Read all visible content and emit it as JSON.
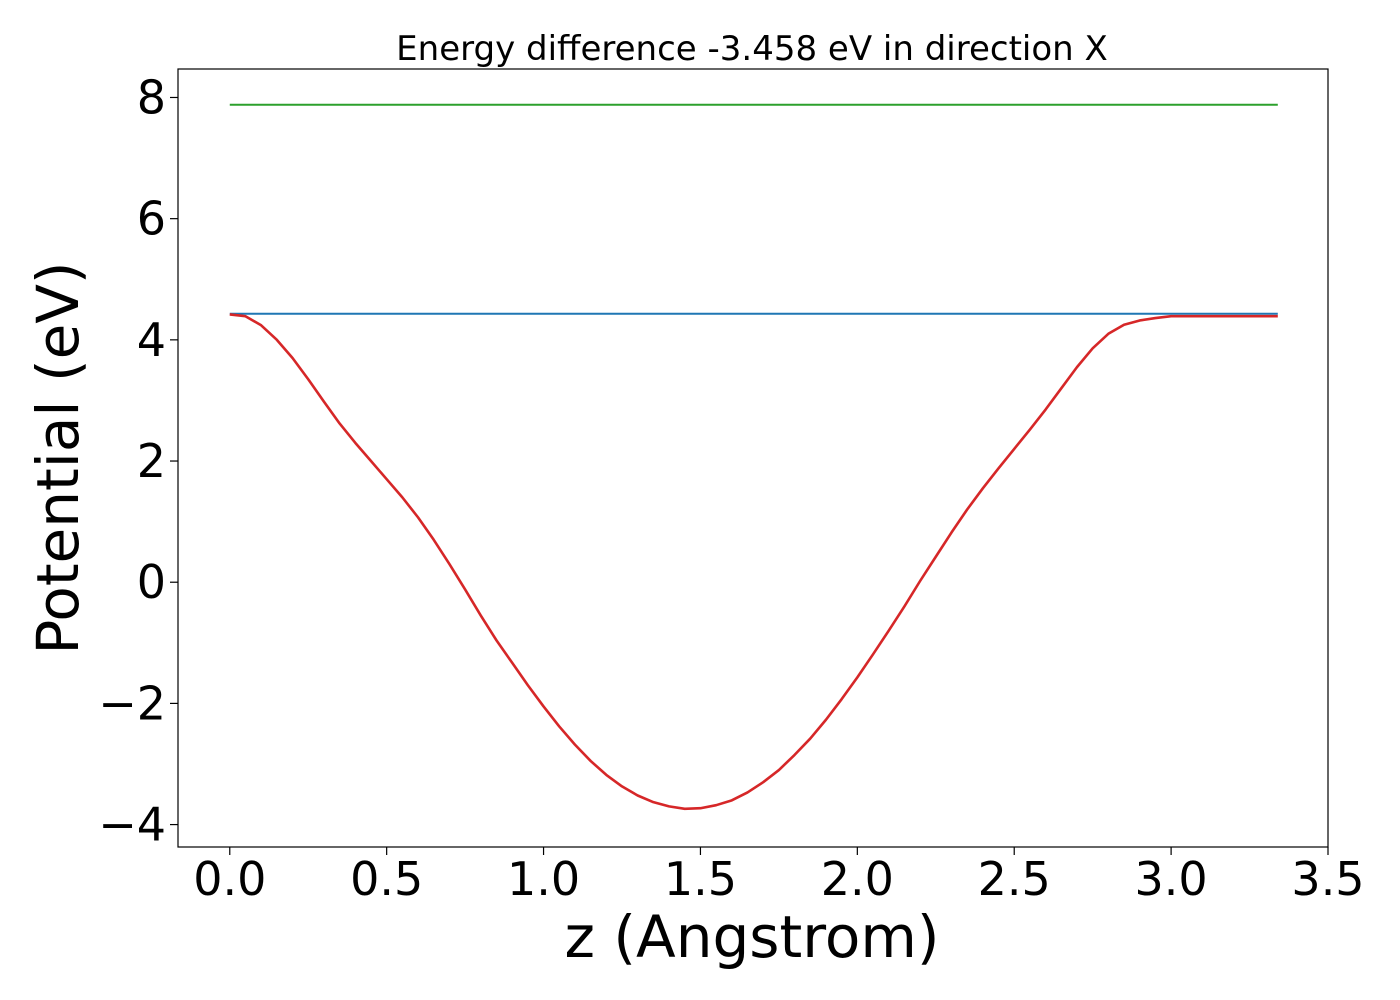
{
  "chart_data": {
    "type": "line",
    "title": "Energy difference -3.458 eV in direction X",
    "xlabel": "z (Angstrom)",
    "ylabel": "Potential (eV)",
    "xlim": [
      -0.165,
      3.5
    ],
    "ylim": [
      -4.37,
      8.47
    ],
    "xticks": [
      0.0,
      0.5,
      1.0,
      1.5,
      2.0,
      2.5,
      3.0,
      3.5
    ],
    "xtick_labels": [
      "0.0",
      "0.5",
      "1.0",
      "1.5",
      "2.0",
      "2.5",
      "3.0",
      "3.5"
    ],
    "yticks": [
      -4,
      -2,
      0,
      2,
      4,
      6,
      8
    ],
    "ytick_labels": [
      "−4",
      "−2",
      "0",
      "2",
      "4",
      "6",
      "8"
    ],
    "grid": false,
    "series": [
      {
        "color": "#2ca02c",
        "x": [
          0.0,
          3.34
        ],
        "y": [
          7.88,
          7.88
        ]
      },
      {
        "color": "#1f77b4",
        "x": [
          0.0,
          3.34
        ],
        "y": [
          4.43,
          4.43
        ]
      },
      {
        "color": "#d62728",
        "x": [
          0.0,
          0.05,
          0.1,
          0.15,
          0.2,
          0.25,
          0.3,
          0.35,
          0.4,
          0.45,
          0.5,
          0.55,
          0.6,
          0.65,
          0.7,
          0.75,
          0.8,
          0.85,
          0.9,
          0.95,
          1.0,
          1.05,
          1.1,
          1.15,
          1.2,
          1.25,
          1.3,
          1.35,
          1.4,
          1.45,
          1.5,
          1.55,
          1.6,
          1.65,
          1.7,
          1.75,
          1.8,
          1.85,
          1.9,
          1.95,
          2.0,
          2.05,
          2.1,
          2.15,
          2.2,
          2.25,
          2.3,
          2.35,
          2.4,
          2.45,
          2.5,
          2.55,
          2.6,
          2.65,
          2.7,
          2.75,
          2.8,
          2.85,
          2.9,
          2.95,
          3.0,
          3.05,
          3.1,
          3.15,
          3.2,
          3.25,
          3.3,
          3.34
        ],
        "y": [
          4.42,
          4.39,
          4.24,
          4.0,
          3.7,
          3.35,
          2.98,
          2.62,
          2.3,
          2.0,
          1.7,
          1.4,
          1.07,
          0.7,
          0.3,
          -0.12,
          -0.55,
          -0.96,
          -1.33,
          -1.7,
          -2.05,
          -2.38,
          -2.68,
          -2.95,
          -3.18,
          -3.37,
          -3.52,
          -3.63,
          -3.7,
          -3.74,
          -3.73,
          -3.68,
          -3.6,
          -3.47,
          -3.3,
          -3.1,
          -2.85,
          -2.58,
          -2.27,
          -1.93,
          -1.57,
          -1.19,
          -0.8,
          -0.4,
          0.02,
          0.42,
          0.82,
          1.2,
          1.55,
          1.88,
          2.2,
          2.52,
          2.85,
          3.2,
          3.55,
          3.86,
          4.1,
          4.25,
          4.32,
          4.36,
          4.39,
          4.39,
          4.39,
          4.39,
          4.39,
          4.39,
          4.39,
          4.39
        ]
      }
    ]
  }
}
